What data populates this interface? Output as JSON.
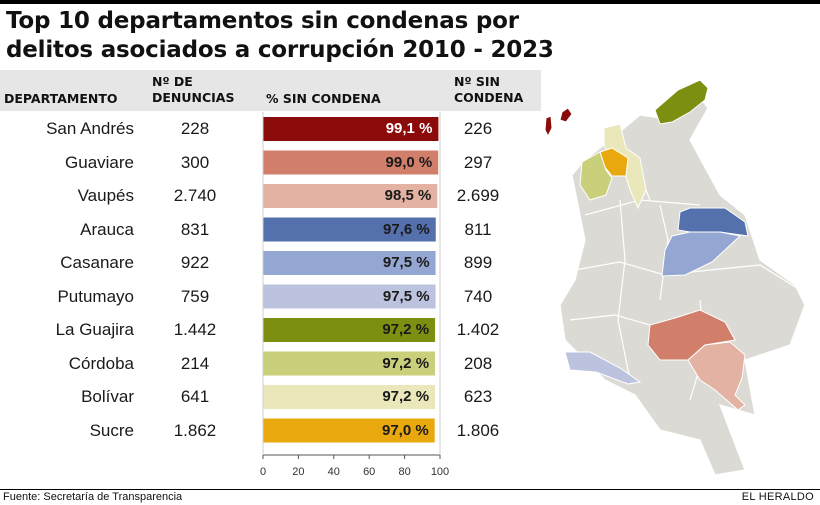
{
  "header": {
    "title": "Top 10 departamentos sin condenas por delitos asociados a corrupción 2010 - 2023"
  },
  "table": {
    "columns": {
      "departamento": "DEPARTAMENTO",
      "denuncias": "Nº DE\nDENUNCIAS",
      "pct": "% SIN CONDENA",
      "sin_condena": "Nº SIN\nCONDENA"
    }
  },
  "chart_data": {
    "type": "bar",
    "orientation": "horizontal",
    "title": "Top 10 departamentos sin condenas por delitos asociados a corrupción 2010 - 2023",
    "xlabel": "",
    "ylabel": "",
    "xlim": [
      0,
      100
    ],
    "x_ticks": [
      "0",
      "20",
      "40",
      "60",
      "80",
      "100"
    ],
    "grid": false,
    "categories": [
      "San Andrés",
      "Guaviare",
      "Vaupés",
      "Arauca",
      "Casanare",
      "Putumayo",
      "La Guajira",
      "Córdoba",
      "Bolívar",
      "Sucre"
    ],
    "values": [
      99.1,
      99.0,
      98.5,
      97.6,
      97.5,
      97.5,
      97.2,
      97.2,
      97.2,
      97.0
    ],
    "value_labels": [
      "99,1 %",
      "99,0 %",
      "98,5 %",
      "97,6 %",
      "97,5 %",
      "97,5 %",
      "97,2 %",
      "97,2 %",
      "97,2 %",
      "97,0 %"
    ],
    "denuncias": [
      "228",
      "300",
      "2.740",
      "831",
      "922",
      "759",
      "1.442",
      "214",
      "641",
      "1.862"
    ],
    "sin_condena": [
      "226",
      "297",
      "2.699",
      "811",
      "899",
      "740",
      "1.402",
      "208",
      "623",
      "1.806"
    ],
    "colors": [
      "#8b0a0a",
      "#d17f6a",
      "#e3b2a2",
      "#5471ae",
      "#94a6d2",
      "#bcc3df",
      "#7d8e10",
      "#c9cf7a",
      "#eae8ba",
      "#eaa80f"
    ]
  },
  "map": {
    "base_color": "#dcdad4",
    "border_color": "#ffffff"
  },
  "footer": {
    "source": "Fuente: Secretaría de Transparencia",
    "brand": "EL HERALDO"
  }
}
